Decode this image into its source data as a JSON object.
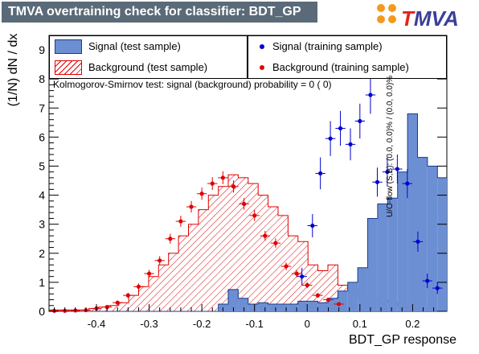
{
  "header": {
    "title": "TMVA overtraining check for classifier: BDT_GP",
    "logo_text_prefix": "T",
    "logo_text_rest": "MVA",
    "logo_icon": "tmva-logo-dots"
  },
  "legend": {
    "signal_test": "Signal (test sample)",
    "background_test": "Background (test sample)",
    "signal_train": "Signal (training sample)",
    "background_train": "Background (training sample)"
  },
  "ks_text": "Kolmogorov-Smirnov test: signal (background) probability = 0 ( 0)",
  "uoflow_text": "U/O-flow (S,B): (0.0, 0.0)% / (0.0, 0.0)%",
  "colors": {
    "signal_fill": "#6c8fd3",
    "signal_line": "#1d3a8a",
    "background": "#e00000",
    "signal_marker": "#0000d0",
    "header_bg": "#5a6a78"
  },
  "chart_data": {
    "type": "bar",
    "title": "TMVA overtraining check for classifier: BDT_GP",
    "xlabel": "BDT_GP response",
    "ylabel": "(1/N) dN / dx",
    "xlim": [
      -0.49,
      0.265
    ],
    "ylim": [
      0,
      9.5
    ],
    "bin_edges_start": -0.49,
    "bin_width": 0.0189,
    "xticks": [
      -0.4,
      -0.3,
      -0.2,
      -0.1,
      0,
      0.1,
      0.2
    ],
    "xtick_labels": [
      "-0.4",
      "-0.3",
      "-0.2",
      "-0.1",
      "0",
      "0.1",
      "0.2"
    ],
    "yticks": [
      0,
      1,
      2,
      3,
      4,
      5,
      6,
      7,
      8,
      9
    ],
    "ytick_labels": [
      "0",
      "1",
      "2",
      "3",
      "4",
      "5",
      "6",
      "7",
      "8",
      "9"
    ],
    "series": [
      {
        "name": "Signal (test sample)",
        "style": "hist-filled",
        "values": [
          0,
          0,
          0,
          0,
          0,
          0,
          0,
          0,
          0,
          0,
          0,
          0,
          0,
          0,
          0,
          0,
          0,
          0.25,
          0.75,
          0.45,
          0.25,
          0.3,
          0.25,
          0.25,
          0.25,
          0.35,
          0.35,
          0.3,
          0.45,
          0.7,
          1.0,
          1.5,
          3.2,
          3.7,
          3.9,
          4.8,
          6.8,
          5.3,
          5.0,
          4.6,
          4.3,
          3.6,
          2.9,
          2.3,
          1.5,
          1.4,
          0.6,
          0.2,
          0.1,
          0
        ]
      },
      {
        "name": "Background (test sample)",
        "style": "hist-hatched",
        "values": [
          0.05,
          0.05,
          0.05,
          0.05,
          0.1,
          0.15,
          0.2,
          0.3,
          0.55,
          0.85,
          1.2,
          1.6,
          2.0,
          2.6,
          3.0,
          3.5,
          4.0,
          4.3,
          4.7,
          4.6,
          4.4,
          4.0,
          3.6,
          3.3,
          2.6,
          2.4,
          1.6,
          1.4,
          1.6,
          0.9,
          0.75,
          0.5,
          0.45,
          0.4,
          0.3,
          0.2,
          0.1,
          0.1,
          0.05,
          0.05,
          0.05,
          0,
          0,
          0,
          0,
          0,
          0,
          0,
          0,
          0
        ]
      },
      {
        "name": "Signal (training sample)",
        "style": "points",
        "x": [
          -0.01,
          0.01,
          0.025,
          0.044,
          0.063,
          0.082,
          0.1,
          0.12,
          0.133,
          0.152,
          0.171,
          0.19,
          0.21,
          0.228,
          0.247
        ],
        "y": [
          1.2,
          2.95,
          4.75,
          5.95,
          6.3,
          5.75,
          6.55,
          7.45,
          4.45,
          4.8,
          4.9,
          4.4,
          2.4,
          1.05,
          0.8
        ],
        "yerr": [
          0.3,
          0.4,
          0.55,
          0.6,
          0.6,
          0.55,
          0.6,
          0.65,
          0.5,
          0.5,
          0.5,
          0.5,
          0.35,
          0.25,
          0.2
        ]
      },
      {
        "name": "Background (training sample)",
        "style": "points",
        "x": [
          -0.48,
          -0.46,
          -0.44,
          -0.42,
          -0.4,
          -0.38,
          -0.36,
          -0.34,
          -0.32,
          -0.3,
          -0.28,
          -0.26,
          -0.24,
          -0.22,
          -0.2,
          -0.18,
          -0.16,
          -0.14,
          -0.12,
          -0.1,
          -0.08,
          -0.06,
          -0.04,
          -0.02,
          0,
          0.02,
          0.04,
          0.06
        ],
        "y": [
          0.02,
          0.02,
          0.03,
          0.04,
          0.1,
          0.15,
          0.3,
          0.55,
          0.85,
          1.3,
          1.75,
          2.5,
          3.1,
          3.6,
          4.05,
          4.4,
          4.6,
          4.3,
          3.7,
          3.3,
          2.6,
          2.35,
          1.55,
          1.3,
          0.9,
          0.55,
          0.4,
          0.25
        ],
        "yerr": [
          0.01,
          0.01,
          0.02,
          0.03,
          0.03,
          0.05,
          0.07,
          0.09,
          0.11,
          0.13,
          0.15,
          0.17,
          0.19,
          0.2,
          0.21,
          0.22,
          0.22,
          0.21,
          0.2,
          0.19,
          0.17,
          0.16,
          0.13,
          0.12,
          0.1,
          0.08,
          0.07,
          0.05
        ]
      }
    ]
  }
}
